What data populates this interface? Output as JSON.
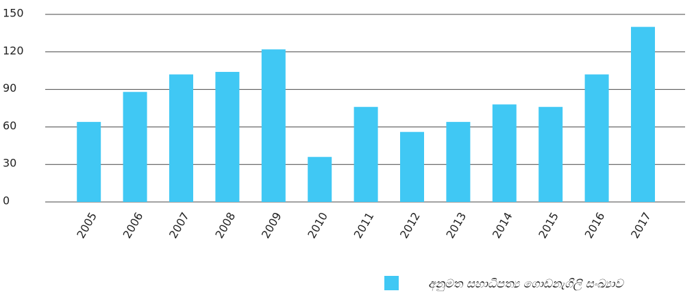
{
  "chart_data": {
    "type": "bar",
    "categories": [
      "2005",
      "2006",
      "2007",
      "2008",
      "2009",
      "2010",
      "2011",
      "2012",
      "2013",
      "2014",
      "2015",
      "2016",
      "2017"
    ],
    "series": [
      {
        "name": "අනුමත සහාධිපත්‍ය ගොඩනැගිලි සංඛ්‍යාව",
        "color": "#40c8f4",
        "values": [
          64,
          88,
          102,
          104,
          122,
          36,
          76,
          56,
          64,
          78,
          76,
          102,
          140
        ]
      }
    ],
    "ylim": [
      0,
      150
    ],
    "yticks": [
      0,
      30,
      60,
      90,
      120,
      150
    ],
    "grid": true,
    "legend": "bottom"
  }
}
